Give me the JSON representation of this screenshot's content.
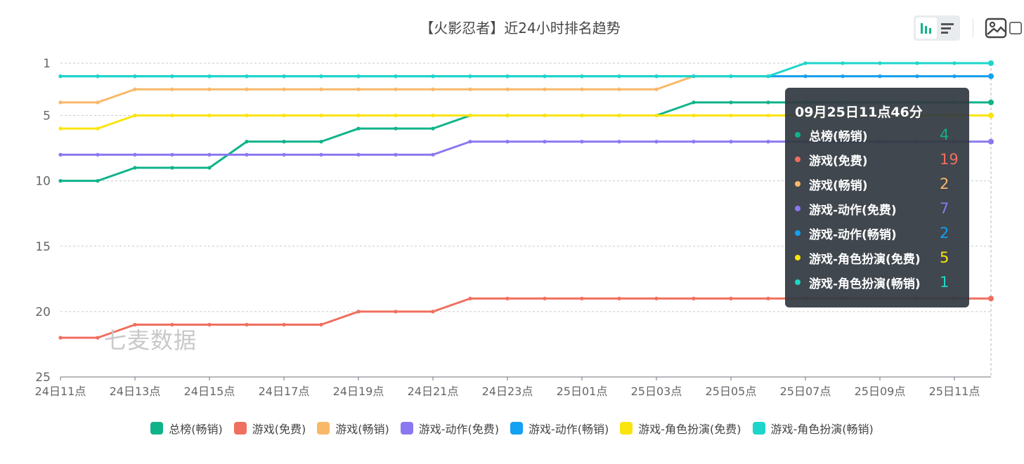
{
  "title": "【火影忍者】近24小时排名趋势",
  "watermark": "七麦数据",
  "toolbar": {
    "icons": [
      "bar-chart-icon",
      "list-icon",
      "image-download-icon",
      "share-icon"
    ]
  },
  "tooltip": {
    "title": "09月25日11点46分",
    "rows": [
      {
        "name": "总榜(畅销)",
        "value": "4",
        "color": "#0fb38a"
      },
      {
        "name": "游戏(免费)",
        "value": "19",
        "color": "#f06f5f"
      },
      {
        "name": "游戏(畅销)",
        "value": "2",
        "color": "#f9b869"
      },
      {
        "name": "游戏-动作(免费)",
        "value": "7",
        "color": "#8a78f0"
      },
      {
        "name": "游戏-动作(畅销)",
        "value": "2",
        "color": "#12a1f3"
      },
      {
        "name": "游戏-角色扮演(免费)",
        "value": "5",
        "color": "#fbe40c"
      },
      {
        "name": "游戏-角色扮演(畅销)",
        "value": "1",
        "color": "#1dd6c9"
      }
    ]
  },
  "chart_data": {
    "type": "line",
    "title": "【火影忍者】近24小时排名趋势",
    "y_inverted": true,
    "ylim": [
      1,
      25
    ],
    "y_ticks": [
      1,
      5,
      10,
      15,
      20,
      25
    ],
    "x_tick_labels": [
      "24日11点",
      "24日13点",
      "24日15点",
      "24日17点",
      "24日19点",
      "24日21点",
      "24日23点",
      "25日01点",
      "25日03点",
      "25日05点",
      "25日07点",
      "25日09点",
      "25日11点"
    ],
    "x": [
      "24日11点",
      "24日12点",
      "24日13点",
      "24日14点",
      "24日15点",
      "24日16点",
      "24日17点",
      "24日18点",
      "24日19点",
      "24日20点",
      "24日21点",
      "24日22点",
      "24日23点",
      "25日00点",
      "25日01点",
      "25日02点",
      "25日03点",
      "25日04点",
      "25日05点",
      "25日06点",
      "25日07点",
      "25日08点",
      "25日09点",
      "25日10点",
      "25日11点",
      "25日11点46分"
    ],
    "series": [
      {
        "name": "总榜(畅销)",
        "color": "#0fb38a",
        "values": [
          10,
          10,
          9,
          9,
          9,
          7,
          7,
          7,
          6,
          6,
          6,
          5,
          5,
          5,
          5,
          5,
          5,
          4,
          4,
          4,
          4,
          4,
          4,
          4,
          4,
          4
        ]
      },
      {
        "name": "游戏(免费)",
        "color": "#f06f5f",
        "values": [
          22,
          22,
          21,
          21,
          21,
          21,
          21,
          21,
          20,
          20,
          20,
          19,
          19,
          19,
          19,
          19,
          19,
          19,
          19,
          19,
          19,
          19,
          19,
          19,
          19,
          19
        ]
      },
      {
        "name": "游戏(畅销)",
        "color": "#f9b869",
        "values": [
          4,
          4,
          3,
          3,
          3,
          3,
          3,
          3,
          3,
          3,
          3,
          3,
          3,
          3,
          3,
          3,
          3,
          2,
          2,
          2,
          2,
          2,
          2,
          2,
          2,
          2
        ]
      },
      {
        "name": "游戏-动作(免费)",
        "color": "#8a78f0",
        "values": [
          8,
          8,
          8,
          8,
          8,
          8,
          8,
          8,
          8,
          8,
          8,
          7,
          7,
          7,
          7,
          7,
          7,
          7,
          7,
          7,
          7,
          7,
          7,
          7,
          7,
          7
        ]
      },
      {
        "name": "游戏-动作(畅销)",
        "color": "#12a1f3",
        "values": [
          2,
          2,
          2,
          2,
          2,
          2,
          2,
          2,
          2,
          2,
          2,
          2,
          2,
          2,
          2,
          2,
          2,
          2,
          2,
          2,
          2,
          2,
          2,
          2,
          2,
          2
        ]
      },
      {
        "name": "游戏-角色扮演(免费)",
        "color": "#fbe40c",
        "values": [
          6,
          6,
          5,
          5,
          5,
          5,
          5,
          5,
          5,
          5,
          5,
          5,
          5,
          5,
          5,
          5,
          5,
          5,
          5,
          5,
          5,
          5,
          5,
          5,
          5,
          5
        ]
      },
      {
        "name": "游戏-角色扮演(畅销)",
        "color": "#1dd6c9",
        "values": [
          2,
          2,
          2,
          2,
          2,
          2,
          2,
          2,
          2,
          2,
          2,
          2,
          2,
          2,
          2,
          2,
          2,
          2,
          2,
          2,
          1,
          1,
          1,
          1,
          1,
          1
        ]
      }
    ],
    "grid": true,
    "legend_position": "bottom"
  }
}
